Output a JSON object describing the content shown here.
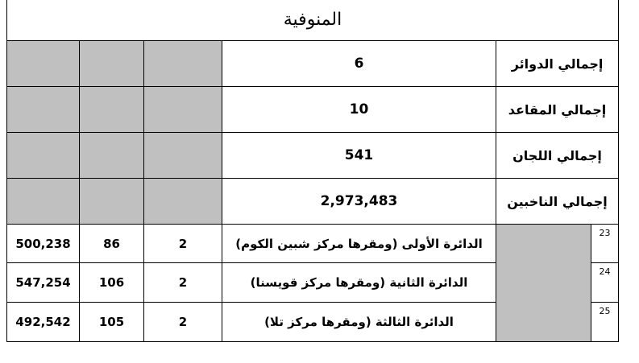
{
  "title": "المنوفية",
  "summary": [
    {
      "label": "إجمالي الدوائر",
      "value": "6"
    },
    {
      "label": "إجمالي المقاعد",
      "value": "10"
    },
    {
      "label": "إجمالي اللجان",
      "value": "541"
    },
    {
      "label": "إجمالي الناخبين",
      "value": "2,973,483"
    }
  ],
  "districts": [
    {
      "num": "23",
      "name": "الدائرة الأولى (ومقرها مركز شبين الكوم)",
      "seats": "2",
      "committees": "86",
      "voters": "500,238"
    },
    {
      "num": "24",
      "name": "الدائرة الثانية (ومقرها مركز قويسنا)",
      "seats": "2",
      "committees": "106",
      "voters": "547,254"
    },
    {
      "num": "25",
      "name": "الدائرة الثالثة (ومقرها مركز تلا)",
      "seats": "2",
      "committees": "105",
      "voters": "492,542"
    }
  ]
}
